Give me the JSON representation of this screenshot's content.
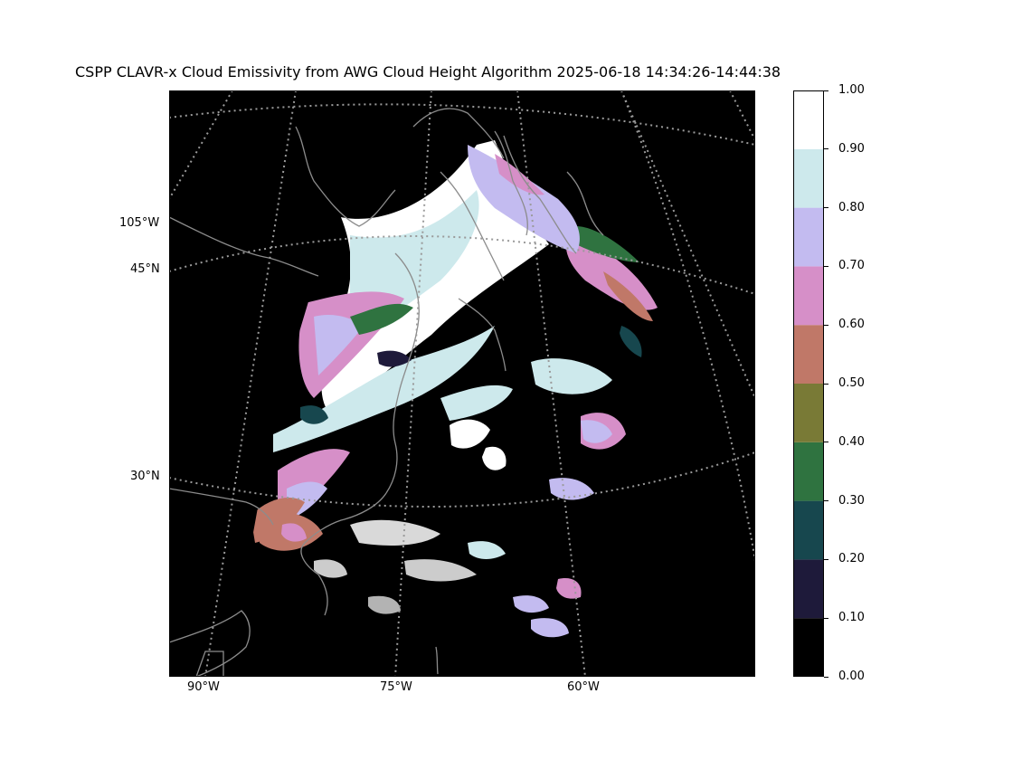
{
  "title": "CSPP CLAVR-x Cloud Emissivity from AWG Cloud Height Algorithm 2025-06-18 14:34:26-14:44:38",
  "map": {
    "background": "#000000",
    "gridline_color": "#9a9a9a",
    "coastline_color": "#8c8c8c",
    "lat_labels": [
      "45°N",
      "30°N"
    ],
    "lon_labels_left": [
      "105°W"
    ],
    "lon_labels_bottom": [
      "90°W",
      "75°W",
      "60°W"
    ]
  },
  "colorbar": {
    "ticks": [
      "0.00",
      "0.10",
      "0.20",
      "0.30",
      "0.40",
      "0.50",
      "0.60",
      "0.70",
      "0.80",
      "0.90",
      "1.00"
    ],
    "colors": [
      "#000000",
      "#1e1a3a",
      "#17474e",
      "#2f7340",
      "#797a36",
      "#c07868",
      "#d68fc8",
      "#c3bbf0",
      "#cde9ec",
      "#ffffff"
    ]
  }
}
